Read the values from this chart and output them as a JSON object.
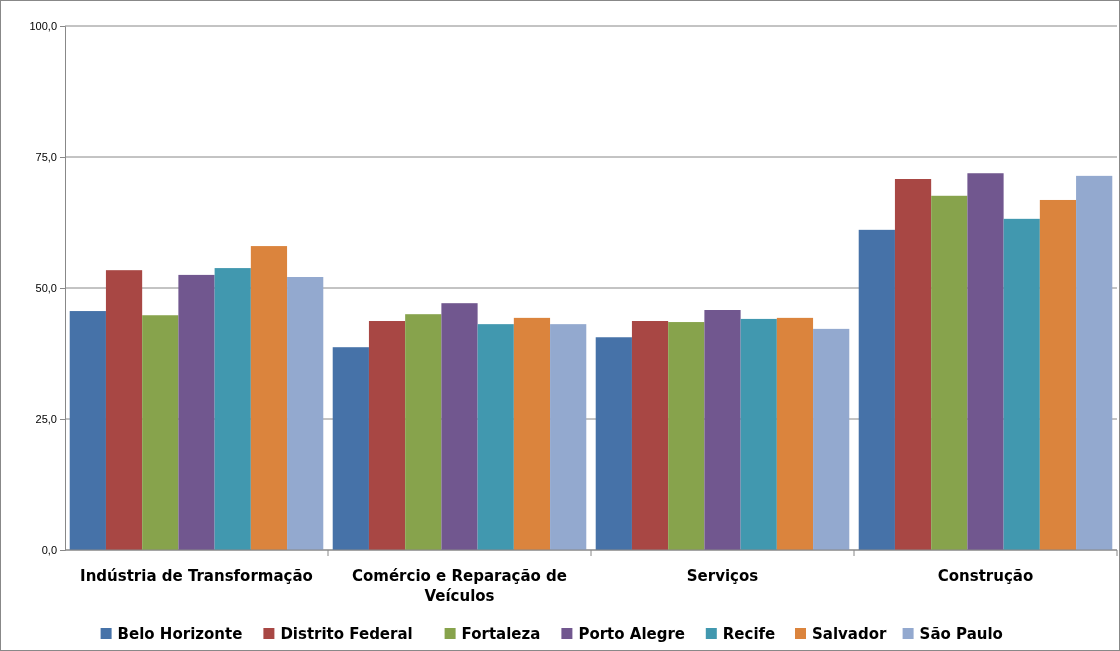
{
  "chart_data": {
    "type": "bar",
    "categories": [
      "Indústria de Transformação",
      "Comércio e Reparação de Veículos",
      "Serviços",
      "Construção"
    ],
    "series": [
      {
        "name": "Belo Horizonte",
        "color": "#4672a8",
        "values": [
          45.6,
          38.7,
          40.6,
          61.1
        ]
      },
      {
        "name": "Distrito Federal",
        "color": "#a84744",
        "values": [
          53.4,
          43.7,
          43.7,
          70.8
        ]
      },
      {
        "name": "Fortaleza",
        "color": "#87a34c",
        "values": [
          44.8,
          45.0,
          43.5,
          67.6
        ]
      },
      {
        "name": "Porto Alegre",
        "color": "#71578f",
        "values": [
          52.5,
          47.1,
          45.8,
          71.9
        ]
      },
      {
        "name": "Recife",
        "color": "#4198af",
        "values": [
          53.8,
          43.1,
          44.1,
          63.2
        ]
      },
      {
        "name": "Salvador",
        "color": "#db843d",
        "values": [
          58.0,
          44.3,
          44.3,
          66.8
        ]
      },
      {
        "name": "São Paulo",
        "color": "#93a9cf",
        "values": [
          52.1,
          43.1,
          42.2,
          71.4
        ]
      }
    ],
    "ylim": [
      0,
      100
    ],
    "yticks": [
      {
        "value": 0,
        "label": "0,0"
      },
      {
        "value": 25,
        "label": "25,0"
      },
      {
        "value": 50,
        "label": "50,0"
      },
      {
        "value": 75,
        "label": "75,0"
      },
      {
        "value": 100,
        "label": "100,0"
      }
    ],
    "grid": "y",
    "legend": "bottom"
  }
}
